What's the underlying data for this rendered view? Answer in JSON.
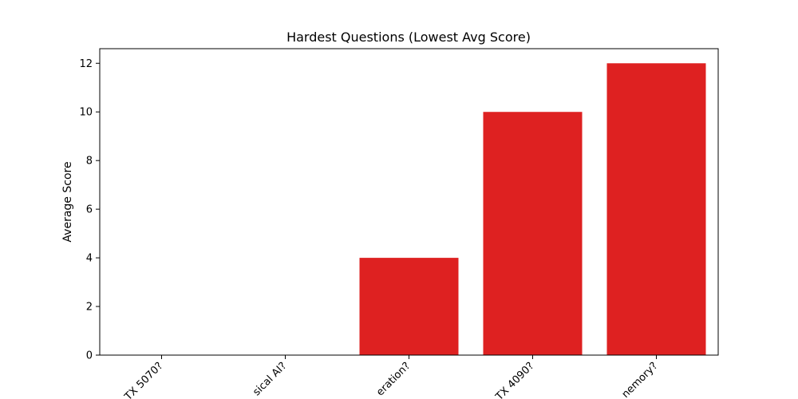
{
  "chart_data": {
    "type": "bar",
    "title": "Hardest Questions (Lowest Avg Score)",
    "xlabel": "",
    "ylabel": "Average Score",
    "categories": [
      "TX 5070?",
      "sical AI?",
      "eration?",
      "TX 4090?",
      "nemory?"
    ],
    "values": [
      0,
      0,
      4,
      10,
      12
    ],
    "ylim": [
      0,
      12.6
    ],
    "yticks": [
      0,
      2,
      4,
      6,
      8,
      10,
      12
    ],
    "bar_color": "#de2121",
    "grid": false,
    "legend": "none"
  }
}
